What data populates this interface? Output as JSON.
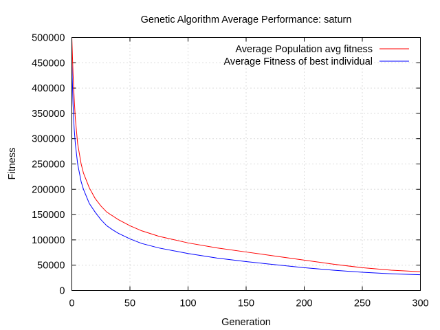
{
  "chart_data": {
    "type": "line",
    "title": "Genetic Algorithm Average Performance: saturn",
    "xlabel": "Generation",
    "ylabel": "Fitness",
    "xlim": [
      0,
      300
    ],
    "ylim": [
      0,
      500000
    ],
    "xticks": [
      0,
      50,
      100,
      150,
      200,
      250,
      300
    ],
    "yticks": [
      0,
      50000,
      100000,
      150000,
      200000,
      250000,
      300000,
      350000,
      400000,
      450000,
      500000
    ],
    "grid": true,
    "legend_position": "top-right",
    "series": [
      {
        "name": "Average Population avg fitness",
        "color": "#ff0000",
        "x": [
          0,
          1,
          2,
          3,
          5,
          8,
          10,
          15,
          20,
          25,
          30,
          40,
          50,
          60,
          75,
          100,
          125,
          150,
          175,
          200,
          225,
          250,
          275,
          300
        ],
        "y": [
          500000,
          430000,
          380000,
          340000,
          290000,
          250000,
          232000,
          203000,
          182000,
          167000,
          155000,
          140000,
          128000,
          118000,
          107000,
          94000,
          84000,
          76000,
          68000,
          60000,
          52000,
          45000,
          40000,
          37000
        ]
      },
      {
        "name": "Average Fitness of best individual",
        "color": "#0000ff",
        "x": [
          0,
          1,
          2,
          3,
          5,
          8,
          10,
          15,
          20,
          25,
          30,
          35,
          40,
          50,
          60,
          75,
          100,
          125,
          150,
          175,
          200,
          225,
          250,
          275,
          300
        ],
        "y": [
          450000,
          370000,
          320000,
          290000,
          250000,
          215000,
          200000,
          172000,
          155000,
          140000,
          128000,
          120000,
          113000,
          102000,
          93000,
          84000,
          73000,
          64000,
          57000,
          51000,
          45000,
          40000,
          36000,
          33000,
          31000
        ]
      }
    ]
  }
}
